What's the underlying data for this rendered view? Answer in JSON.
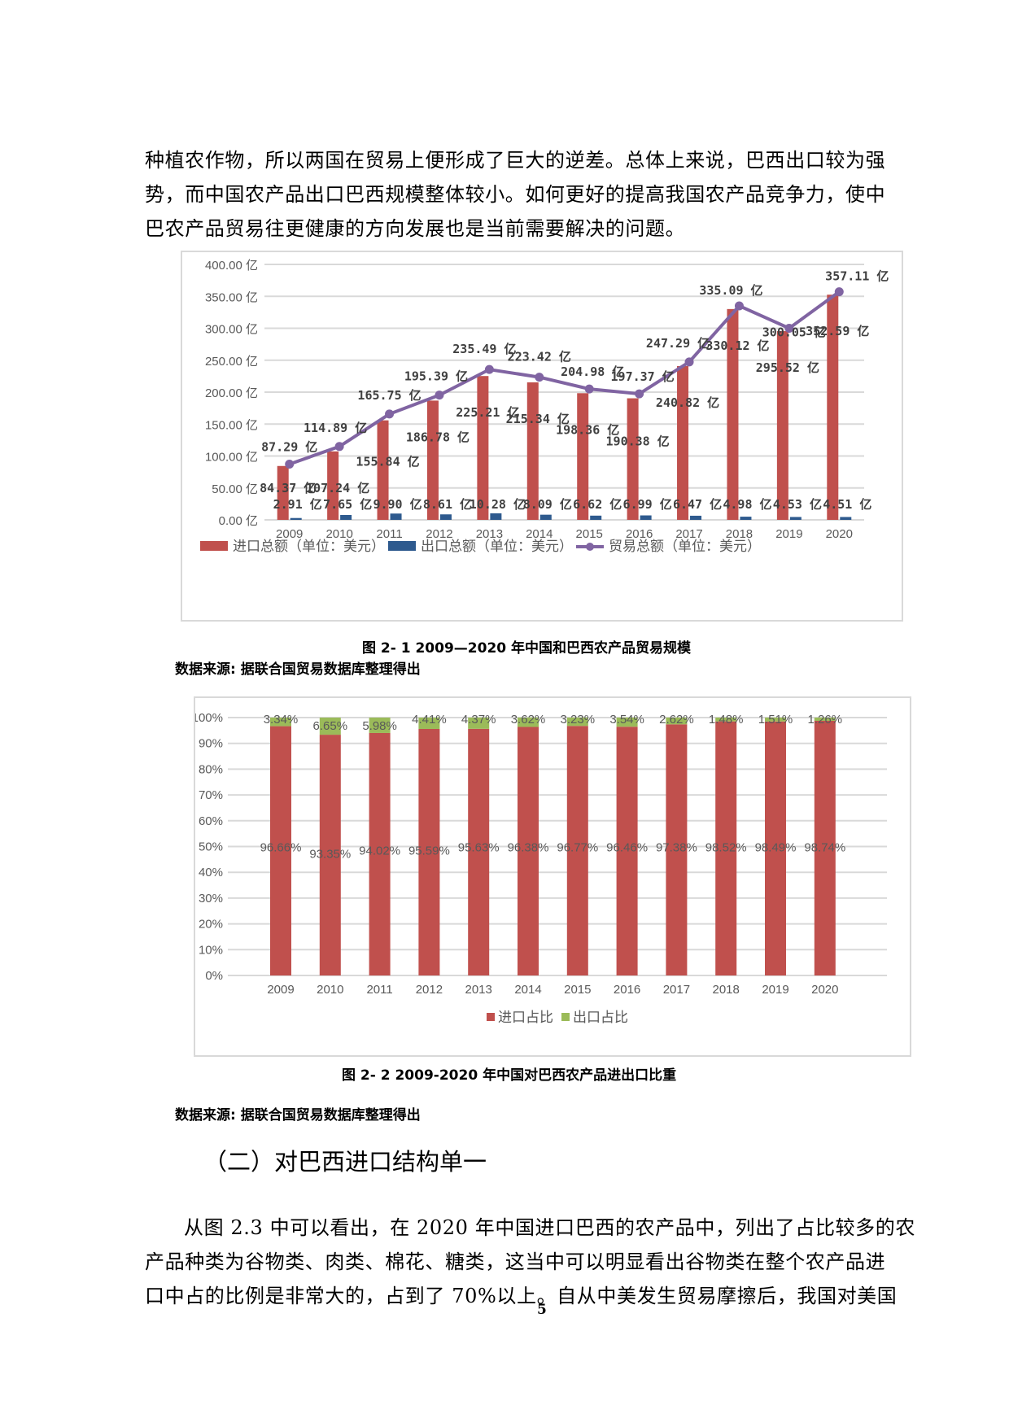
{
  "top_paragraph": {
    "lines": [
      "种植农作物，所以两国在贸易上便形成了巨大的逆差。总体上来说，巴西出口较为强",
      "势，而中国农产品出口巴西规模整体较小。如何更好的提高我国农产品竞争力，使中",
      "巴农产品贸易往更健康的方向发展也是当前需要解决的问题。"
    ]
  },
  "figure1": {
    "caption": "图 2- 1 2009—2020 年中国和巴西农产品贸易规模",
    "source": "数据来源: 据联合国贸易数据库整理得出"
  },
  "figure2": {
    "caption": "图 2- 2 2009-2020 年中国对巴西农产品进出口比重",
    "source": "数据来源: 据联合国贸易数据库整理得出"
  },
  "section_heading": "（二）对巴西进口结构单一",
  "bottom_paragraph": {
    "lines": [
      "从图 2.3 中可以看出，在 2020 年中国进口巴西的农产品中，列出了占比较多的农",
      "产品种类为谷物类、肉类、棉花、糖类，这当中可以明显看出谷物类在整个农产品进",
      "口中占的比例是非常大的，占到了 70%以上。自从中美发生贸易摩擦后，我国对美国"
    ]
  },
  "page_number": "5",
  "colors": {
    "import": "#c0504d",
    "export": "#2e5a8e",
    "trade": "#8064a2",
    "export_share": "#9bbb59",
    "grid": "#d9d9d9",
    "axis_text": "#595959"
  },
  "chart_data": [
    {
      "type": "bar+line",
      "title": "",
      "categories": [
        "2009",
        "2010",
        "2011",
        "2012",
        "2013",
        "2014",
        "2015",
        "2016",
        "2017",
        "2018",
        "2019",
        "2020"
      ],
      "series": [
        {
          "name": "进口总额（单位：美元）",
          "kind": "bar",
          "values": [
            84.37,
            107.24,
            155.84,
            186.78,
            225.21,
            215.34,
            198.36,
            190.38,
            240.82,
            330.12,
            295.52,
            352.59
          ]
        },
        {
          "name": "出口总额（单位：美元）",
          "kind": "bar",
          "values": [
            2.91,
            7.65,
            9.9,
            8.61,
            10.28,
            8.09,
            6.62,
            6.99,
            6.47,
            4.98,
            4.53,
            4.51
          ]
        },
        {
          "name": "贸易总额（单位：美元）",
          "kind": "line",
          "values": [
            87.29,
            114.89,
            165.75,
            195.39,
            235.49,
            223.42,
            204.98,
            197.37,
            247.29,
            335.09,
            300.05,
            357.11
          ]
        }
      ],
      "value_suffix": "亿",
      "yticks": [
        "0.00 亿",
        "50.00 亿",
        "100.00 亿",
        "150.00 亿",
        "200.00 亿",
        "250.00 亿",
        "300.00 亿",
        "350.00 亿",
        "400.00 亿"
      ],
      "ylim": [
        0,
        400
      ],
      "grid": true,
      "legend_position": "bottom",
      "xlabel": "",
      "ylabel": ""
    },
    {
      "type": "stacked_bar_100",
      "title": "",
      "categories": [
        "2009",
        "2010",
        "2011",
        "2012",
        "2013",
        "2014",
        "2015",
        "2016",
        "2017",
        "2018",
        "2019",
        "2020"
      ],
      "series": [
        {
          "name": "进口占比",
          "values": [
            96.66,
            93.35,
            94.02,
            95.59,
            95.63,
            96.38,
            96.77,
            96.46,
            97.38,
            98.52,
            98.49,
            98.74
          ],
          "labels": [
            "96.66%",
            "93.35%",
            "94.02%",
            "95.59%",
            "95.63%",
            "96.38%",
            "96.77%",
            "96.46%",
            "97.38%",
            "98.52%",
            "98.49%",
            "98.74%"
          ]
        },
        {
          "name": "出口占比",
          "values": [
            3.34,
            6.65,
            5.98,
            4.41,
            4.37,
            3.62,
            3.23,
            3.54,
            2.62,
            1.48,
            1.51,
            1.26
          ],
          "labels": [
            "3.34%",
            "6.65%",
            "5.98%",
            "4.41%",
            "4.37%",
            "3.62%",
            "3.23%",
            "3.54%",
            "2.62%",
            "1.48%",
            "1.51%",
            "1.26%"
          ]
        }
      ],
      "yticks": [
        "0%",
        "10%",
        "20%",
        "30%",
        "40%",
        "50%",
        "60%",
        "70%",
        "80%",
        "90%",
        "100%"
      ],
      "ylim": [
        0,
        100
      ],
      "grid": true,
      "legend_position": "bottom",
      "xlabel": "",
      "ylabel": ""
    }
  ]
}
